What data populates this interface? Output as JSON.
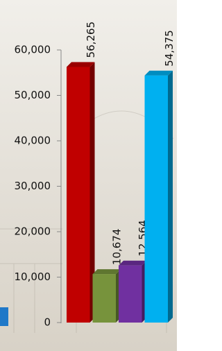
{
  "chart_data": {
    "type": "bar",
    "values": [
      56265,
      10674,
      12564,
      54375
    ],
    "value_labels": [
      "56,265",
      "10,674",
      "12,564",
      "54,375"
    ],
    "colors": [
      "#c00000",
      "#77933c",
      "#7030a0",
      "#00b0f0"
    ],
    "ylim": [
      0,
      60000
    ],
    "yticks": [
      0,
      {
        "value": 10000,
        "label": "10,000"
      },
      {
        "value": 20000,
        "label": "20,000"
      },
      {
        "value": 30000,
        "label": "30,000"
      },
      {
        "value": 40000,
        "label": "40,000"
      },
      {
        "value": 50000,
        "label": "50,000"
      },
      {
        "value": 60000,
        "label": "60,000"
      }
    ]
  }
}
